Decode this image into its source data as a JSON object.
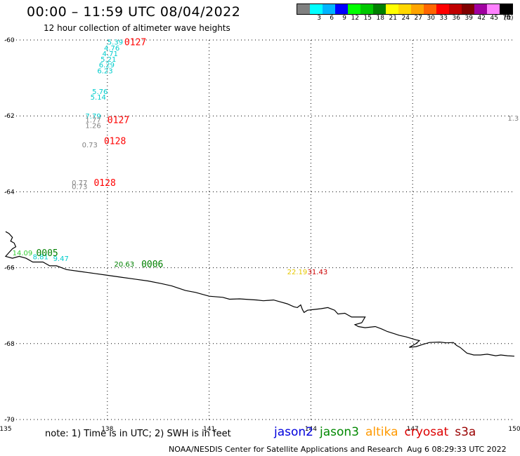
{
  "header": {
    "title": "00:00 – 11:59 UTC 08/04/2022",
    "subtitle": "12 hour collection of altimeter wave heights"
  },
  "colorbar": {
    "unit": "(ft)",
    "labels": [
      "",
      "3",
      "6",
      "9",
      "12",
      "15",
      "18",
      "21",
      "24",
      "27",
      "30",
      "33",
      "36",
      "39",
      "42",
      "45",
      "70"
    ],
    "colors": [
      "#808080",
      "#00ffff",
      "#00b4ff",
      "#0000ff",
      "#00ff00",
      "#00c800",
      "#008000",
      "#ffff00",
      "#ffd700",
      "#ffa500",
      "#ff6600",
      "#ff0000",
      "#c00000",
      "#800000",
      "#a000a0",
      "#ff80ff",
      "#000000"
    ]
  },
  "map": {
    "lon_ticks": [
      "135",
      "138",
      "141",
      "144",
      "147",
      "150"
    ],
    "lat_ticks": [
      "-60",
      "-62",
      "-64",
      "-66",
      "-68",
      "-70"
    ],
    "lon_range": [
      135,
      150
    ],
    "lat_range": [
      -60,
      -70
    ],
    "gridlines": true,
    "coastline_color": "#000000"
  },
  "observations": [
    {
      "text": "5.39",
      "color": "#00cccc",
      "lon": 138.0,
      "lat": -60.05
    },
    {
      "text": "4.76",
      "color": "#00cccc",
      "lon": 137.9,
      "lat": -60.2
    },
    {
      "text": "4.71",
      "color": "#00cccc",
      "lon": 137.85,
      "lat": -60.35
    },
    {
      "text": "5.21",
      "color": "#00cccc",
      "lon": 137.8,
      "lat": -60.5
    },
    {
      "text": "6.29",
      "color": "#00cccc",
      "lon": 137.75,
      "lat": -60.65
    },
    {
      "text": "6.23",
      "color": "#00cccc",
      "lon": 137.7,
      "lat": -60.8
    },
    {
      "text": "5.76",
      "color": "#00cccc",
      "lon": 137.55,
      "lat": -61.35
    },
    {
      "text": "5.14",
      "color": "#00cccc",
      "lon": 137.5,
      "lat": -61.5
    },
    {
      "text": "7.79",
      "color": "#00cccc",
      "lon": 137.35,
      "lat": -62.0
    },
    {
      "text": "1.77",
      "color": "#808080",
      "lon": 137.35,
      "lat": -62.1
    },
    {
      "text": "1.26",
      "color": "#808080",
      "lon": 137.35,
      "lat": -62.25
    },
    {
      "text": "0.73",
      "color": "#808080",
      "lon": 137.25,
      "lat": -62.75
    },
    {
      "text": "0.77",
      "color": "#808080",
      "lon": 136.95,
      "lat": -63.75
    },
    {
      "text": "0.73",
      "color": "#808080",
      "lon": 136.95,
      "lat": -63.85
    },
    {
      "text": "14.09",
      "color": "#33cc33",
      "lon": 135.2,
      "lat": -65.6
    },
    {
      "text": "8.81",
      "color": "#00cccc",
      "lon": 135.8,
      "lat": -65.7
    },
    {
      "text": "9.47",
      "color": "#00cccc",
      "lon": 136.4,
      "lat": -65.75
    },
    {
      "text": "20.63",
      "color": "#008000",
      "lon": 138.2,
      "lat": -65.9
    },
    {
      "text": "22.19",
      "color": "#e6c800",
      "lon": 143.3,
      "lat": -66.1
    },
    {
      "text": "31.43",
      "color": "#cc0000",
      "lon": 143.9,
      "lat": -66.1
    },
    {
      "text": "1.3",
      "color": "#808080",
      "lon": 149.8,
      "lat": -62.05
    }
  ],
  "time_labels": [
    {
      "text": "0127",
      "color": "#ff0000",
      "lon": 138.5,
      "lat": -60.05
    },
    {
      "text": "0127",
      "color": "#ff0000",
      "lon": 138.0,
      "lat": -62.1
    },
    {
      "text": "0128",
      "color": "#ff0000",
      "lon": 137.9,
      "lat": -62.65
    },
    {
      "text": "0128",
      "color": "#ff0000",
      "lon": 137.6,
      "lat": -63.75
    },
    {
      "text": "0005",
      "color": "#008000",
      "lon": 135.9,
      "lat": -65.6
    },
    {
      "text": "0006",
      "color": "#008000",
      "lon": 139.0,
      "lat": -65.9
    }
  ],
  "coastline": [
    [
      135.0,
      -65.05
    ],
    [
      135.1,
      -65.1
    ],
    [
      135.2,
      -65.2
    ],
    [
      135.15,
      -65.3
    ],
    [
      135.25,
      -65.35
    ],
    [
      135.3,
      -65.45
    ],
    [
      135.2,
      -65.5
    ],
    [
      135.1,
      -65.6
    ],
    [
      135.0,
      -65.7
    ],
    [
      135.2,
      -65.75
    ],
    [
      135.4,
      -65.7
    ],
    [
      135.6,
      -65.75
    ],
    [
      135.8,
      -65.85
    ],
    [
      136.1,
      -65.85
    ],
    [
      136.3,
      -65.95
    ],
    [
      136.5,
      -65.95
    ],
    [
      136.8,
      -66.05
    ],
    [
      137.2,
      -66.1
    ],
    [
      137.6,
      -66.15
    ],
    [
      138.0,
      -66.2
    ],
    [
      138.4,
      -66.25
    ],
    [
      138.8,
      -66.3
    ],
    [
      139.2,
      -66.35
    ],
    [
      139.6,
      -66.42
    ],
    [
      139.9,
      -66.48
    ],
    [
      140.3,
      -66.6
    ],
    [
      140.6,
      -66.65
    ],
    [
      141.0,
      -66.75
    ],
    [
      141.4,
      -66.78
    ],
    [
      141.6,
      -66.83
    ],
    [
      141.9,
      -66.82
    ],
    [
      142.2,
      -66.84
    ],
    [
      142.4,
      -66.85
    ],
    [
      142.6,
      -66.87
    ],
    [
      142.9,
      -66.85
    ],
    [
      143.1,
      -66.9
    ],
    [
      143.3,
      -66.95
    ],
    [
      143.5,
      -67.03
    ],
    [
      143.6,
      -67.05
    ],
    [
      143.7,
      -66.98
    ],
    [
      143.75,
      -67.1
    ],
    [
      143.8,
      -67.18
    ],
    [
      143.9,
      -67.12
    ],
    [
      144.1,
      -67.1
    ],
    [
      144.3,
      -67.08
    ],
    [
      144.5,
      -67.05
    ],
    [
      144.7,
      -67.12
    ],
    [
      144.8,
      -67.22
    ],
    [
      145.0,
      -67.2
    ],
    [
      145.2,
      -67.3
    ],
    [
      145.35,
      -67.3
    ],
    [
      145.6,
      -67.3
    ],
    [
      145.5,
      -67.45
    ],
    [
      145.3,
      -67.5
    ],
    [
      145.4,
      -67.55
    ],
    [
      145.6,
      -67.58
    ],
    [
      145.9,
      -67.55
    ],
    [
      146.1,
      -67.62
    ],
    [
      146.25,
      -67.68
    ],
    [
      146.5,
      -67.75
    ],
    [
      146.6,
      -67.78
    ],
    [
      146.8,
      -67.82
    ],
    [
      147.1,
      -67.9
    ],
    [
      147.2,
      -67.92
    ],
    [
      147.1,
      -68.0
    ],
    [
      147.0,
      -68.05
    ],
    [
      146.9,
      -68.1
    ],
    [
      147.1,
      -68.08
    ],
    [
      147.3,
      -68.02
    ],
    [
      147.5,
      -67.97
    ],
    [
      147.8,
      -67.96
    ],
    [
      148.0,
      -67.98
    ],
    [
      148.2,
      -67.97
    ],
    [
      148.3,
      -68.05
    ],
    [
      148.4,
      -68.1
    ],
    [
      148.6,
      -68.25
    ],
    [
      148.8,
      -68.3
    ],
    [
      149.0,
      -68.3
    ],
    [
      149.2,
      -68.28
    ],
    [
      149.45,
      -68.32
    ],
    [
      149.6,
      -68.3
    ],
    [
      149.8,
      -68.32
    ],
    [
      150.0,
      -68.33
    ]
  ],
  "footer": {
    "note": "note: 1) Time is in UTC; 2) SWH is in feet",
    "missions": [
      {
        "label": "jason2",
        "color": "#0000dd"
      },
      {
        "label": "jason3",
        "color": "#008800"
      },
      {
        "label": "altika",
        "color": "#ff9900"
      },
      {
        "label": "cryosat",
        "color": "#dd0000"
      },
      {
        "label": "s3a",
        "color": "#990000"
      }
    ],
    "credit": "NOAA/NESDIS Center for Satellite Applications and Research",
    "generated": "Aug  6 08:29:33 UTC 2022"
  }
}
